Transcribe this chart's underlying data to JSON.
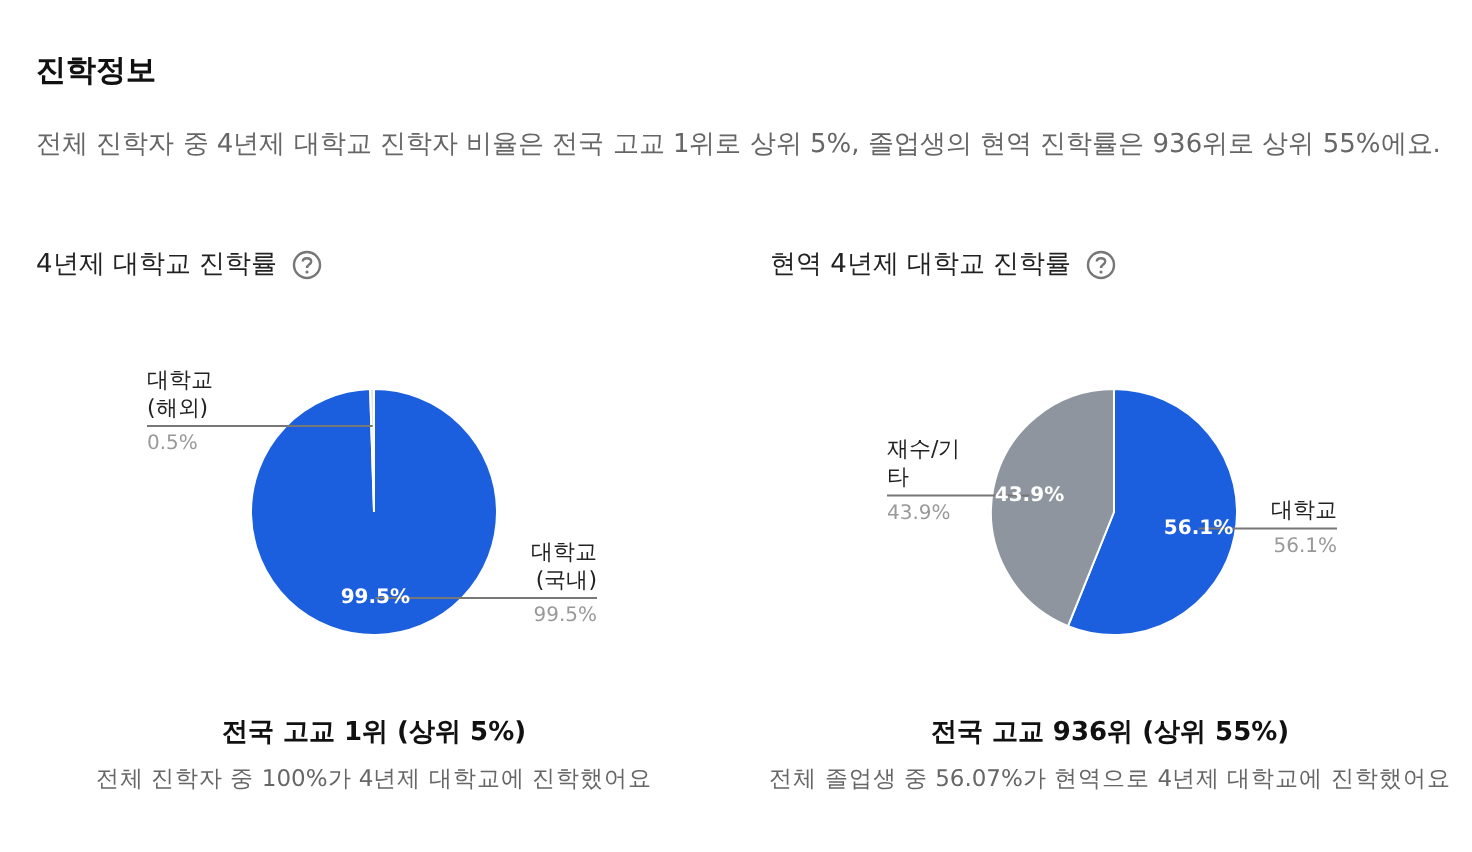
{
  "chart_data": [
    {
      "type": "pie",
      "title": "4년제 대학교 진학률",
      "categories": [
        "대학교 (국내)",
        "대학교 (해외)"
      ],
      "values": [
        99.5,
        0.5
      ],
      "value_labels": [
        "99.5%",
        "0.5%"
      ],
      "colors": [
        "#1b5fde",
        "#dde1e6"
      ],
      "legend": false,
      "annotations": [
        "진학정보",
        "전체 진학자 중 4년제 대학교 진학자 비율은 전국 고교 1위로 상위 5%, 졸업생의 현역 진학률은 936위로 상위 55%에요.",
        "전국 고교 1위 (상위 5%)",
        "전체 진학자 중 100%가 4년제 대학교에 진학했어요"
      ]
    },
    {
      "type": "pie",
      "title": "현역 4년제 대학교 진학률",
      "categories": [
        "대학교",
        "재수/기타"
      ],
      "values": [
        56.1,
        43.9
      ],
      "value_labels": [
        "56.1%",
        "43.9%"
      ],
      "colors": [
        "#1b5fde",
        "#8e959e"
      ],
      "legend": false,
      "annotations": [
        "전국 고교 936위 (상위 55%)",
        "전체 졸업생 중 56.07%가 현역으로 4년제 대학교에 진학했어요"
      ]
    }
  ]
}
